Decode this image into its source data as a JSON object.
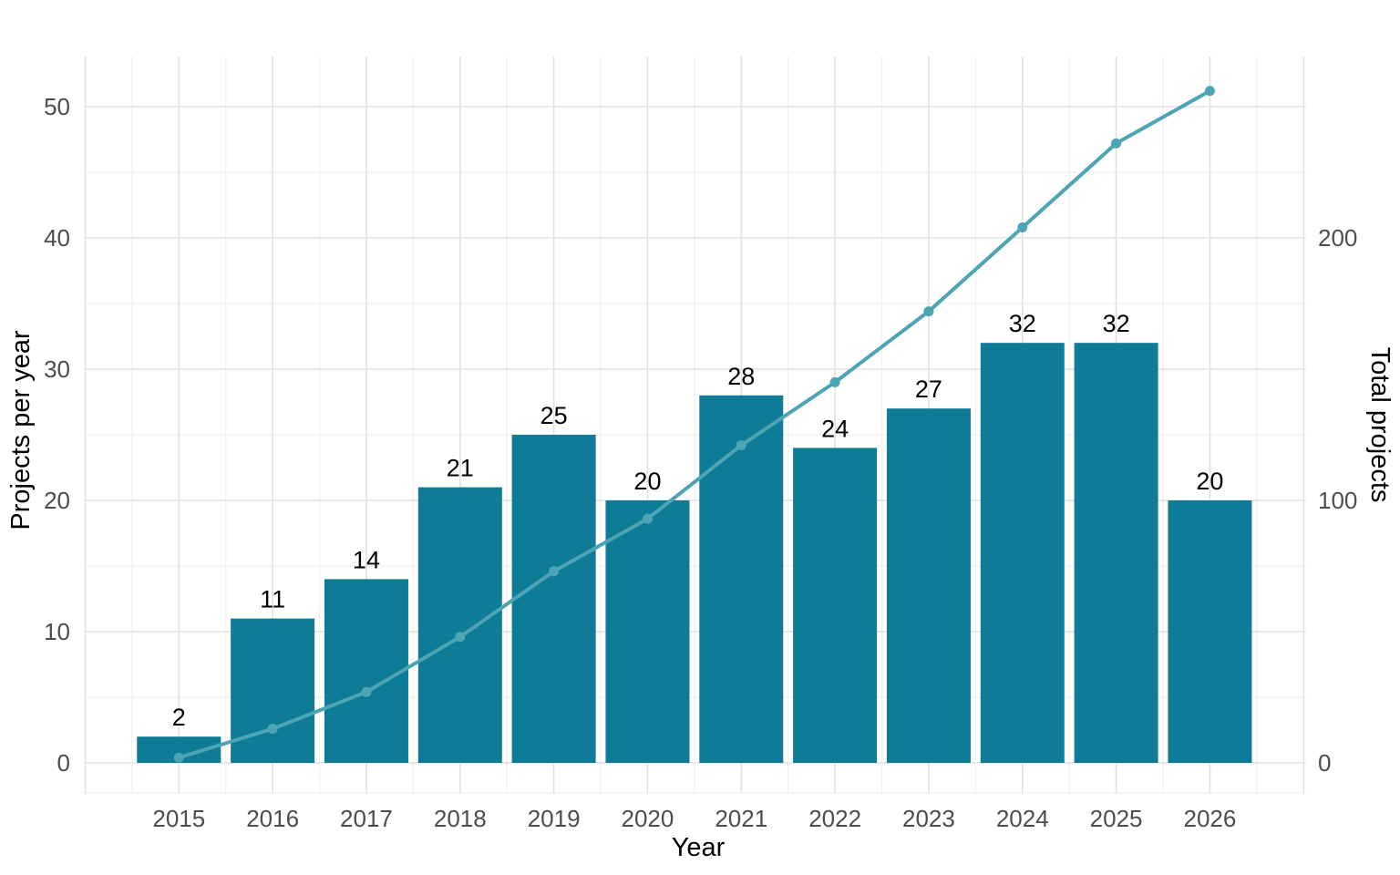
{
  "chart_data": {
    "type": "bar+line",
    "title": "",
    "xlabel": "Year",
    "ylabel_left": "Projects per year",
    "ylabel_right": "Total projects",
    "categories": [
      "2015",
      "2016",
      "2017",
      "2018",
      "2019",
      "2020",
      "2021",
      "2022",
      "2023",
      "2024",
      "2025",
      "2026"
    ],
    "series": [
      {
        "name": "Projects per year",
        "type": "bar",
        "axis": "left",
        "values": [
          2,
          11,
          14,
          21,
          25,
          20,
          28,
          24,
          27,
          32,
          32,
          20
        ]
      },
      {
        "name": "Total projects",
        "type": "line",
        "axis": "right",
        "values": [
          2,
          13,
          27,
          48,
          73,
          93,
          121,
          145,
          172,
          204,
          236,
          256
        ]
      }
    ],
    "bar_value_labels": [
      "2",
      "11",
      "14",
      "21",
      "25",
      "20",
      "28",
      "24",
      "27",
      "32",
      "32",
      "20"
    ],
    "left_axis": {
      "ticks": [
        0,
        10,
        20,
        30,
        40,
        50
      ],
      "minor_ticks": [
        5,
        15,
        25,
        35,
        45
      ],
      "lim": [
        -2.3,
        53.8
      ]
    },
    "right_axis": {
      "ticks": [
        0,
        100,
        200
      ],
      "lim": [
        -11.5,
        269
      ],
      "scale_vs_left": 5
    },
    "grid": {
      "major": true,
      "minor": true
    },
    "legend": "none",
    "colors": {
      "bar": "#0e7c96",
      "line": "#4da4b5",
      "point": "#4da4b5",
      "tick_text": "#4d4d4d",
      "title_text": "#000000",
      "bar_label_text": "#000000",
      "grid_major": "#e2e2e2",
      "grid_minor": "#f0f0f0",
      "background": "#ffffff"
    }
  }
}
